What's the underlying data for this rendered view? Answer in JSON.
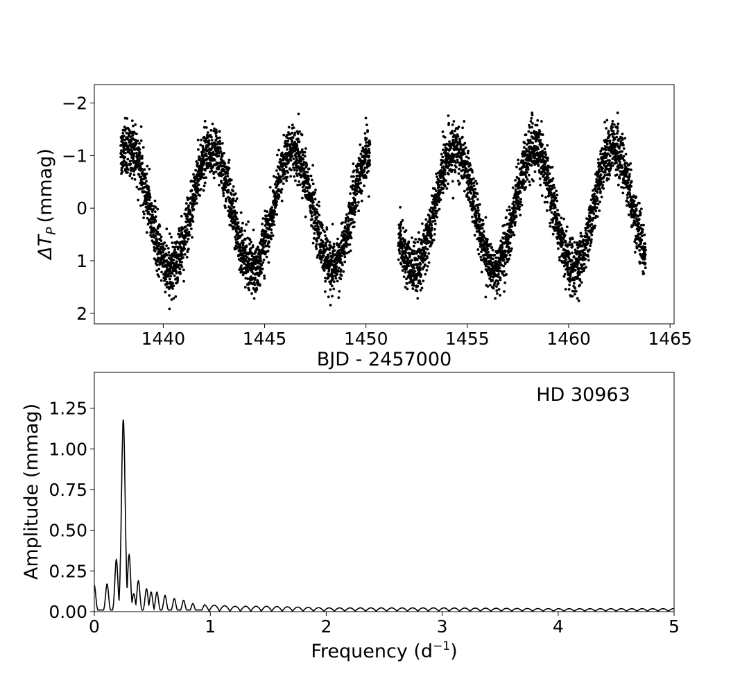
{
  "chart_data": [
    {
      "type": "scatter",
      "title": "",
      "xlabel": "BJD - 2457000",
      "ylabel": "ΔT",
      "ylabel_subscript": "P",
      "ylabel_unit": "(mmag)",
      "xlim": [
        1436.6,
        1465.2
      ],
      "ylim": [
        2.2,
        -2.35
      ],
      "y_inverted": true,
      "xticks": [
        1440,
        1445,
        1450,
        1455,
        1460,
        1465
      ],
      "xtick_labels": [
        "1440",
        "1445",
        "1450",
        "1455",
        "1460",
        "1465"
      ],
      "yticks": [
        -2,
        -1,
        0,
        1,
        2
      ],
      "ytick_labels": [
        "−2",
        "−1",
        "0",
        "1",
        "2"
      ],
      "grid": false,
      "series": [
        {
          "segments": [
            [
              1437.9,
              1450.2
            ],
            [
              1451.6,
              1463.8
            ]
          ],
          "model": {
            "period_days": 4.0,
            "amplitude_mmag": 1.15,
            "max_brightness_at": [
              1438.3,
              1442.4,
              1446.4,
              1450.3,
              1454.4,
              1458.3,
              1462.2
            ],
            "scatter_mmag": 0.25,
            "points_per_day": 230
          }
        }
      ]
    },
    {
      "type": "line",
      "title": "",
      "annotation": "HD 30963",
      "xlabel": "Frequency (d",
      "xlabel_sup": "−1",
      "xlabel_close": ")",
      "ylabel": "Amplitude (mmag)",
      "xlim": [
        0,
        5
      ],
      "ylim": [
        0,
        1.47
      ],
      "xticks": [
        0,
        1,
        2,
        3,
        4,
        5
      ],
      "xtick_labels": [
        "0",
        "1",
        "2",
        "3",
        "4",
        "5"
      ],
      "yticks": [
        0.0,
        0.25,
        0.5,
        0.75,
        1.0,
        1.25
      ],
      "ytick_labels": [
        "0.00",
        "0.25",
        "0.50",
        "0.75",
        "1.00",
        "1.25"
      ],
      "grid": false,
      "series": [
        {
          "peaks": [
            {
              "f": 0.0,
              "a": 0.16
            },
            {
              "f": 0.11,
              "a": 0.17
            },
            {
              "f": 0.19,
              "a": 0.32
            },
            {
              "f": 0.25,
              "a": 1.18
            },
            {
              "f": 0.3,
              "a": 0.35
            },
            {
              "f": 0.34,
              "a": 0.11
            },
            {
              "f": 0.38,
              "a": 0.19
            },
            {
              "f": 0.45,
              "a": 0.14
            },
            {
              "f": 0.49,
              "a": 0.12
            },
            {
              "f": 0.54,
              "a": 0.12
            },
            {
              "f": 0.61,
              "a": 0.1
            },
            {
              "f": 0.69,
              "a": 0.08
            },
            {
              "f": 0.77,
              "a": 0.07
            },
            {
              "f": 0.85,
              "a": 0.05
            },
            {
              "f": 0.95,
              "a": 0.04
            },
            {
              "f": 1.2,
              "a": 0.03
            },
            {
              "f": 1.5,
              "a": 0.03
            },
            {
              "f": 2.0,
              "a": 0.02
            },
            {
              "f": 3.0,
              "a": 0.02
            },
            {
              "f": 4.0,
              "a": 0.015
            },
            {
              "f": 5.0,
              "a": 0.015
            }
          ]
        }
      ]
    }
  ]
}
